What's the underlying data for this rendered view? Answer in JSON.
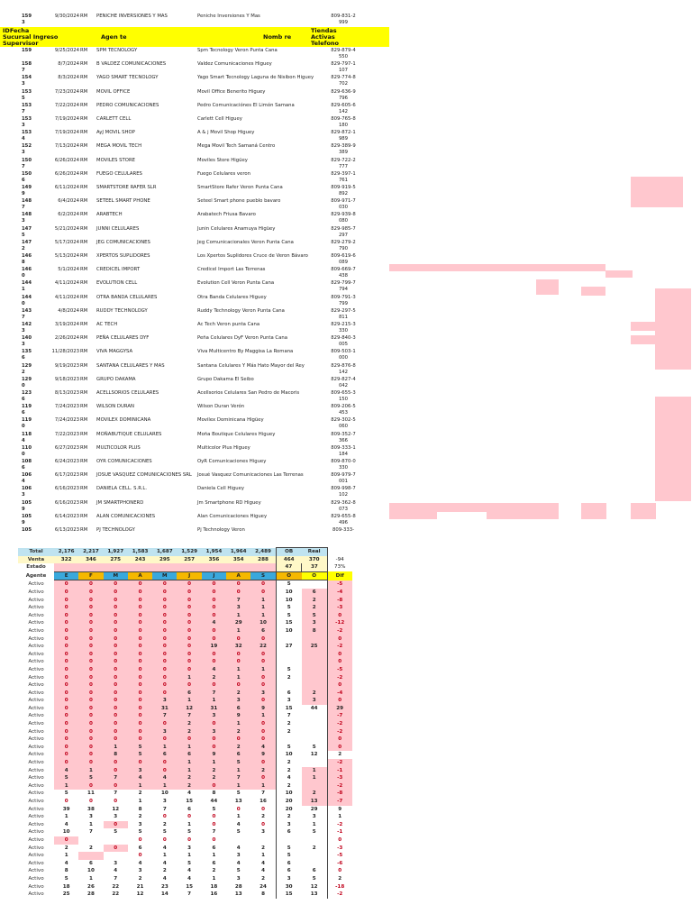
{
  "header": {
    "id_fecha": "IDFecha",
    "sucursal_ingreso": "Sucursal Ingreso",
    "supervisor": "Supervisor",
    "agente": "Agen te",
    "nombre": "Nomb re",
    "tiendas": "Tiendas Activas Telefono"
  },
  "stores": [
    [
      "1593",
      "9/30/2024",
      "RM",
      "PENICHE INVERSIONES Y MAS",
      "Peniche Inversiones Y Mas",
      "809-831-2999"
    ],
    [
      "159",
      "9/25/2024",
      "RM",
      "SPM TECNOLOGY",
      "Spm Tecnology Veron Punta Cana",
      "829-879-4550"
    ],
    [
      "1587",
      "8/7/2024",
      "RM",
      "B VALDEZ COMUNICACIONES",
      "Valdez Comunicaciones Higuey",
      "829-797-1107"
    ],
    [
      "1543",
      "8/3/2024",
      "RM",
      "YAGO SMART TECNOLOGY",
      "Yago Smart Tecnology Laguna de Nisibon Higuey",
      "829-774-8702"
    ],
    [
      "1535",
      "7/23/2024",
      "RM",
      "MOVIL OFFICE",
      "Movil Office Benerito Higuey",
      "829-636-9796"
    ],
    [
      "1537",
      "7/22/2024",
      "RM",
      "PEDRO COMUNICACIONES",
      "Pedro Comunicaciónes El Limón Samana",
      "829-605-6142"
    ],
    [
      "1533",
      "7/19/2024",
      "RM",
      "CARLETT CELL",
      "Carlett Cell Higuey",
      "809-765-8180"
    ],
    [
      "1534",
      "7/19/2024",
      "RM",
      "AyJ MOVIL SHOP",
      "A & j Movil Shop Higuey",
      "829-872-1989"
    ],
    [
      "1523",
      "7/13/2024",
      "RM",
      "MEGA MOVIL TECH",
      "Mega Movil Tech Samaná Centro",
      "829-389-9389"
    ],
    [
      "1507",
      "6/26/2024",
      "RM",
      "MOVILES STORE",
      "Moviles Store Higüey",
      "829-722-2777"
    ],
    [
      "1506",
      "6/26/2024",
      "RM",
      "FUEGO CELULARES",
      "Fuego Celulares veron",
      "829-397-1761"
    ],
    [
      "1499",
      "6/11/2024",
      "RM",
      "SMARTSTORE RAFER SLR",
      "SmartStore Rafer Veron Punta Cana",
      "809-919-5892"
    ],
    [
      "1487",
      "6/4/2024",
      "RM",
      "SETEEL SMART PHONE",
      "Seteel Smart phone pueblo bavaro",
      "809-971-7030"
    ],
    [
      "1483",
      "6/2/2024",
      "RM",
      "ARABTECH",
      "Arabatech Friusa Bavaro",
      "829-939-8080"
    ],
    [
      "1475",
      "5/21/2024",
      "RM",
      "JUNNI CELULARES",
      "Junin Celulares Anamuya Higüey",
      "829-985-7297"
    ],
    [
      "1472",
      "5/17/2024",
      "RM",
      "JEG COMUNICACIONES",
      "Jeg Comunicacionales Veron Punta Cana",
      "829-279-2790"
    ],
    [
      "1468",
      "5/13/2024",
      "RM",
      "XPERTOS SUPLIDORES",
      "Los Xpertos Suplidores Cruce de Veron Bávaro",
      "809-619-6089"
    ],
    [
      "1460",
      "5/1/2024",
      "RM",
      "CREDICEL IMPORT",
      "Credicel Import Las Terrenas",
      "809-669-7438"
    ],
    [
      "1441",
      "4/11/2024",
      "RM",
      "EVOLUTION CELL",
      "Evolution Cell Veron Punta Cana",
      "829-799-7794"
    ],
    [
      "1440",
      "4/11/2024",
      "RM",
      "OTRA BANDA CELULARES",
      "Otra Banda Celulares Higuey",
      "809-791-3799"
    ],
    [
      "1437",
      "4/8/2024",
      "RM",
      "RUDDY TECHNOLOGY",
      "Ruddy Technology Veron Punta Cana",
      "829-297-5811"
    ],
    [
      "1423",
      "3/19/2024",
      "RM",
      "AC TECH",
      "Ac Tech Veron punta Cana",
      "829-215-3330"
    ],
    [
      "1403",
      "2/26/2024",
      "RM",
      "PEÑA CELULARES DYF",
      "Peña Celulares DyF Veron Punta Cana",
      "829-840-3005"
    ],
    [
      "1356",
      "11/28/2023",
      "RM",
      "VIVA MAGGYSA",
      "Viva Multicentro By Maggisa La Romana",
      "809-503-1000"
    ],
    [
      "1292",
      "9/19/2023",
      "RM",
      "SANTANA CELULARES Y MAS",
      "Santana Celulares Y Más Hato Mayor del Rey",
      "829-876-8142"
    ],
    [
      "1290",
      "9/18/2023",
      "RM",
      "GRUPO DAKAMA",
      "Grupo Dakama El Seibo",
      "829-827-4042"
    ],
    [
      "1236",
      "8/13/2023",
      "RM",
      "ACELLSORIOS CELULARES",
      "Acellsorios Celulares San Pedro de Macoris",
      "809-655-3150"
    ],
    [
      "1196",
      "7/24/2023",
      "RM",
      "WILSON DURAN",
      "Wilson Duran Verón",
      "809-206-5453"
    ],
    [
      "1190",
      "7/24/2023",
      "RM",
      "MOVILEX DOMINICANA",
      "Movilex Dominicana Higüey",
      "829-302-5060"
    ],
    [
      "1184",
      "7/22/2023",
      "RM",
      "MOÑABUTIQUE CELULARES",
      "Moña Boutique Celulares Higuey",
      "809-352-7366"
    ],
    [
      "1100",
      "6/27/2023",
      "RM",
      "MULTICOLOR PLUS",
      "Multicolor Plus Higuey",
      "809-333-1184"
    ],
    [
      "1086",
      "6/24/2023",
      "RM",
      "OYR COMUNICACIONES",
      "OyR Comunicaciones Higuey",
      "809-870-0330"
    ],
    [
      "1064",
      "6/17/2023",
      "RM",
      "JOSUE VASQUEZ COMUNICACIONES SRL",
      "Josué Vasquez Comunicaciones Las Terrenas",
      "809-979-7001"
    ],
    [
      "1063",
      "6/16/2023",
      "RM",
      "DANIELA CELL. S.R.L.",
      "Daniela Cell Higuey",
      "809-998-7102"
    ],
    [
      "1059",
      "6/16/2023",
      "RM",
      "JM SMARTPHONERD",
      "Jm Smartphone RD Higuey",
      "829-362-8073"
    ],
    [
      "1059",
      "6/14/2023",
      "RM",
      "ALAN COMUNICACIONES",
      "Alan Comunicaciones Higuey",
      "829-655-8496"
    ],
    [
      "105",
      "6/13/2023",
      "RM",
      "PJ TECHNOLOGY",
      "Pj Technology Veron",
      "809-333-"
    ]
  ],
  "summary": {
    "total_label": "Total",
    "totals": [
      "2,176",
      "2,217",
      "1,927",
      "1,583",
      "1,687",
      "1,529",
      "1,954",
      "1,964",
      "2,489"
    ],
    "ob_label": "OB",
    "real_label": "Real",
    "venta_label": "Venta",
    "ventas": [
      "322",
      "346",
      "275",
      "243",
      "295",
      "257",
      "356",
      "354",
      "288"
    ],
    "venta_ob": "464",
    "venta_real": "370",
    "venta_dif": "-94",
    "estado_label": "Estado",
    "estado_ob": "47",
    "estado_real": "37",
    "estado_pct": "73%",
    "agente_label": "Agente",
    "months": [
      "E",
      "F",
      "M",
      "A",
      "M",
      "J",
      "J",
      "A",
      "S"
    ],
    "ob_month": "O",
    "real_month": "O",
    "dif_label": "Dif"
  },
  "agents": [
    {
      "s": "Activo",
      "m": [
        "0",
        "0",
        "0",
        "0",
        "0",
        "0",
        "0",
        "0",
        "0"
      ],
      "ob": "5",
      "re": "",
      "d": "-5"
    },
    {
      "s": "Activo",
      "m": [
        "0",
        "0",
        "0",
        "0",
        "0",
        "0",
        "0",
        "0",
        "0"
      ],
      "ob": "10",
      "re": "6",
      "d": "-4"
    },
    {
      "s": "Activo",
      "m": [
        "0",
        "0",
        "0",
        "0",
        "0",
        "0",
        "0",
        "7",
        "1"
      ],
      "ob": "10",
      "re": "2",
      "d": "-8"
    },
    {
      "s": "Activo",
      "m": [
        "0",
        "0",
        "0",
        "0",
        "0",
        "0",
        "0",
        "3",
        "1"
      ],
      "ob": "5",
      "re": "2",
      "d": "-3"
    },
    {
      "s": "Activo",
      "m": [
        "0",
        "0",
        "0",
        "0",
        "0",
        "0",
        "0",
        "1",
        "1"
      ],
      "ob": "5",
      "re": "5",
      "d": "0"
    },
    {
      "s": "Activo",
      "m": [
        "0",
        "0",
        "0",
        "0",
        "0",
        "0",
        "4",
        "29",
        "10"
      ],
      "ob": "15",
      "re": "3",
      "d": "-12"
    },
    {
      "s": "Activo",
      "m": [
        "0",
        "0",
        "0",
        "0",
        "0",
        "0",
        "0",
        "1",
        "6"
      ],
      "ob": "10",
      "re": "8",
      "d": "-2"
    },
    {
      "s": "Activo",
      "m": [
        "0",
        "0",
        "0",
        "0",
        "0",
        "0",
        "0",
        "0",
        "0"
      ],
      "ob": "",
      "re": "",
      "d": "0"
    },
    {
      "s": "Activo",
      "m": [
        "0",
        "0",
        "0",
        "0",
        "0",
        "0",
        "19",
        "32",
        "22"
      ],
      "ob": "27",
      "re": "25",
      "d": "-2"
    },
    {
      "s": "Activo",
      "m": [
        "0",
        "0",
        "0",
        "0",
        "0",
        "0",
        "0",
        "0",
        "0"
      ],
      "ob": "",
      "re": "",
      "d": "0"
    },
    {
      "s": "Activo",
      "m": [
        "0",
        "0",
        "0",
        "0",
        "0",
        "0",
        "0",
        "0",
        "0"
      ],
      "ob": "",
      "re": "",
      "d": "0"
    },
    {
      "s": "Activo",
      "m": [
        "0",
        "0",
        "0",
        "0",
        "0",
        "0",
        "4",
        "1",
        "1"
      ],
      "ob": "5",
      "re": "",
      "d": "-5"
    },
    {
      "s": "Activo",
      "m": [
        "0",
        "0",
        "0",
        "0",
        "0",
        "1",
        "2",
        "1",
        "0"
      ],
      "ob": "2",
      "re": "",
      "d": "-2"
    },
    {
      "s": "Activo",
      "m": [
        "0",
        "0",
        "0",
        "0",
        "0",
        "0",
        "0",
        "0",
        "0"
      ],
      "ob": "",
      "re": "",
      "d": "0"
    },
    {
      "s": "Activo",
      "m": [
        "0",
        "0",
        "0",
        "0",
        "0",
        "6",
        "7",
        "2",
        "3"
      ],
      "ob": "6",
      "re": "2",
      "d": "-4"
    },
    {
      "s": "Activo",
      "m": [
        "0",
        "0",
        "0",
        "0",
        "3",
        "1",
        "1",
        "3",
        "0"
      ],
      "ob": "3",
      "re": "3",
      "d": "0"
    },
    {
      "s": "Activo",
      "m": [
        "0",
        "0",
        "0",
        "0",
        "31",
        "12",
        "31",
        "6",
        "9"
      ],
      "ob": "15",
      "re": "44",
      "d": "29"
    },
    {
      "s": "Activo",
      "m": [
        "0",
        "0",
        "0",
        "0",
        "7",
        "7",
        "3",
        "9",
        "1"
      ],
      "ob": "7",
      "re": "",
      "d": "-7"
    },
    {
      "s": "Activo",
      "m": [
        "0",
        "0",
        "0",
        "0",
        "0",
        "2",
        "0",
        "1",
        "0"
      ],
      "ob": "2",
      "re": "",
      "d": "-2"
    },
    {
      "s": "Activo",
      "m": [
        "0",
        "0",
        "0",
        "0",
        "3",
        "2",
        "3",
        "2",
        "0"
      ],
      "ob": "2",
      "re": "",
      "d": "-2"
    },
    {
      "s": "Activo",
      "m": [
        "0",
        "0",
        "0",
        "0",
        "0",
        "0",
        "0",
        "0",
        "0"
      ],
      "ob": "",
      "re": "",
      "d": "0"
    },
    {
      "s": "Activo",
      "m": [
        "0",
        "0",
        "1",
        "5",
        "1",
        "1",
        "0",
        "2",
        "4"
      ],
      "ob": "5",
      "re": "5",
      "d": "0"
    },
    {
      "s": "Activo",
      "m": [
        "0",
        "0",
        "8",
        "5",
        "6",
        "6",
        "9",
        "6",
        "9"
      ],
      "ob": "10",
      "re": "12",
      "d": "2"
    },
    {
      "s": "Activo",
      "m": [
        "0",
        "0",
        "0",
        "0",
        "0",
        "1",
        "1",
        "5",
        "0"
      ],
      "ob": "2",
      "re": "",
      "d": "-2"
    },
    {
      "s": "Activo",
      "m": [
        "4",
        "1",
        "0",
        "3",
        "0",
        "1",
        "2",
        "1",
        "2"
      ],
      "ob": "2",
      "re": "1",
      "d": "-1"
    },
    {
      "s": "Activo",
      "m": [
        "5",
        "5",
        "7",
        "4",
        "4",
        "2",
        "2",
        "7",
        "0"
      ],
      "ob": "4",
      "re": "1",
      "d": "-3"
    },
    {
      "s": "Activo",
      "m": [
        "1",
        "0",
        "0",
        "1",
        "1",
        "2",
        "0",
        "1",
        "1"
      ],
      "ob": "2",
      "re": "",
      "d": "-2"
    },
    {
      "s": "Activo",
      "m": [
        "5",
        "11",
        "7",
        "2",
        "10",
        "4",
        "8",
        "5",
        "7"
      ],
      "ob": "10",
      "re": "2",
      "d": "-8"
    },
    {
      "s": "Activo",
      "m": [
        "0",
        "0",
        "0",
        "1",
        "3",
        "15",
        "44",
        "13",
        "16"
      ],
      "ob": "20",
      "re": "13",
      "d": "-7"
    },
    {
      "s": "Activo",
      "m": [
        "39",
        "38",
        "12",
        "8",
        "7",
        "6",
        "5",
        "0",
        "0"
      ],
      "ob": "20",
      "re": "29",
      "d": "9"
    },
    {
      "s": "Activo",
      "m": [
        "1",
        "3",
        "3",
        "2",
        "0",
        "0",
        "0",
        "1",
        "2"
      ],
      "ob": "2",
      "re": "3",
      "d": "1"
    },
    {
      "s": "Activo",
      "m": [
        "4",
        "1",
        "0",
        "3",
        "2",
        "1",
        "0",
        "4",
        "0"
      ],
      "ob": "3",
      "re": "1",
      "d": "-2"
    },
    {
      "s": "Activo",
      "m": [
        "10",
        "7",
        "5",
        "5",
        "5",
        "5",
        "7",
        "5",
        "3"
      ],
      "ob": "6",
      "re": "5",
      "d": "-1"
    },
    {
      "s": "Activo",
      "m": [
        "0",
        "",
        "",
        "0",
        "0",
        "0",
        "0",
        "",
        ""
      ],
      "ob": "",
      "re": "",
      "d": "0"
    },
    {
      "s": "Activo",
      "m": [
        "2",
        "2",
        "0",
        "6",
        "4",
        "3",
        "6",
        "4",
        "2"
      ],
      "ob": "5",
      "re": "2",
      "d": "-3"
    },
    {
      "s": "Activo",
      "m": [
        "1",
        "",
        "",
        "0",
        "1",
        "1",
        "1",
        "3",
        "1"
      ],
      "ob": "5",
      "re": "",
      "d": "-5"
    },
    {
      "s": "Activo",
      "m": [
        "4",
        "6",
        "3",
        "4",
        "4",
        "5",
        "6",
        "4",
        "4"
      ],
      "ob": "6",
      "re": "",
      "d": "-6"
    },
    {
      "s": "Activo",
      "m": [
        "8",
        "10",
        "4",
        "3",
        "2",
        "4",
        "2",
        "5",
        "4"
      ],
      "ob": "6",
      "re": "6",
      "d": "0"
    },
    {
      "s": "Activo",
      "m": [
        "5",
        "1",
        "7",
        "2",
        "4",
        "4",
        "1",
        "3",
        "2"
      ],
      "ob": "3",
      "re": "5",
      "d": "2"
    },
    {
      "s": "Activo",
      "m": [
        "18",
        "26",
        "22",
        "21",
        "23",
        "15",
        "18",
        "28",
        "24"
      ],
      "ob": "30",
      "re": "12",
      "d": "-18"
    },
    {
      "s": "Activo",
      "m": [
        "25",
        "28",
        "22",
        "12",
        "14",
        "7",
        "16",
        "13",
        "8"
      ],
      "ob": "15",
      "re": "13",
      "d": "-2"
    }
  ]
}
